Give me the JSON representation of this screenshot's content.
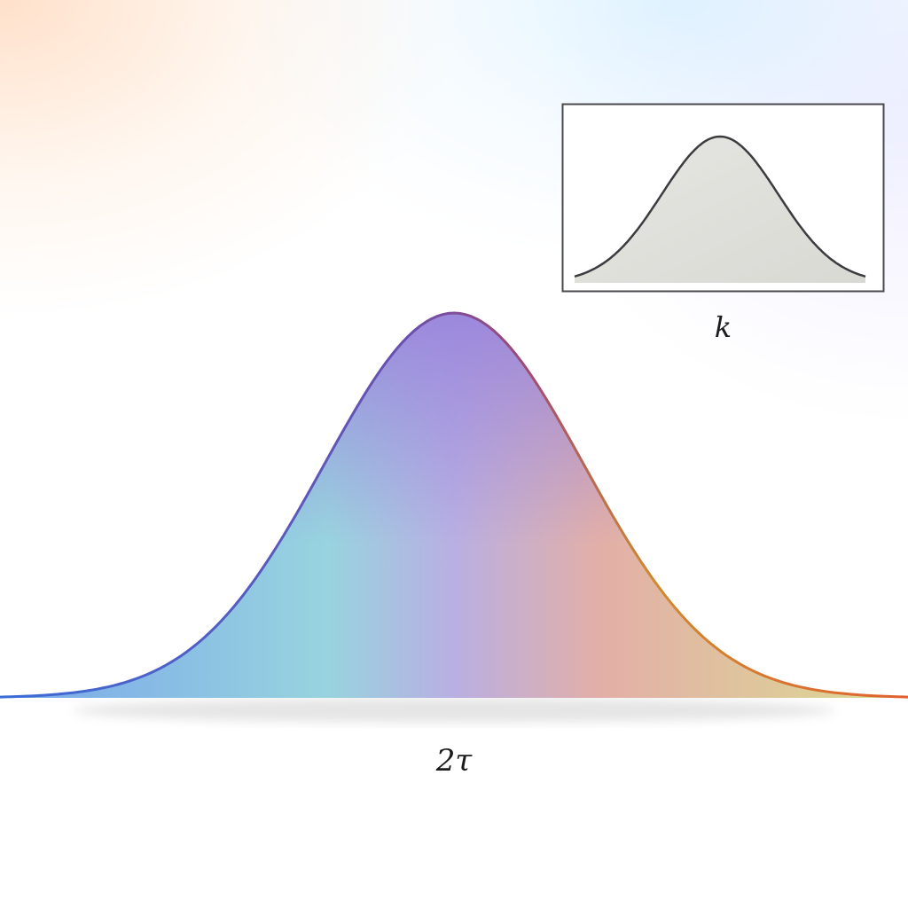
{
  "chart_data": [
    {
      "type": "area",
      "title": "",
      "xlabel": "2τ",
      "ylabel": "",
      "grid": false,
      "legend": "none",
      "curve": "gaussian",
      "x": [
        -3.5,
        -3.0,
        -2.5,
        -2.0,
        -1.5,
        -1.0,
        -0.5,
        0.0,
        0.5,
        1.0,
        1.5,
        2.0,
        2.5,
        3.0,
        3.5
      ],
      "y": [
        0.002,
        0.011,
        0.044,
        0.135,
        0.325,
        0.607,
        0.882,
        1.0,
        0.882,
        0.607,
        0.325,
        0.135,
        0.044,
        0.011,
        0.002
      ],
      "xlim": [
        -3.5,
        3.5
      ],
      "ylim": [
        0,
        1.0
      ],
      "fill_colors": [
        "#6d9ee8",
        "#8fd0dc",
        "#b3a8e0",
        "#9a86dc",
        "#e0a8a0",
        "#d8d888"
      ],
      "stroke_colors": [
        "#3a6cd8",
        "#6a4fb0",
        "#a04a70",
        "#d08a30",
        "#e06030"
      ]
    },
    {
      "type": "area",
      "title": "",
      "xlabel": "k",
      "ylabel": "",
      "grid": false,
      "legend": "none",
      "curve": "gaussian",
      "x": [
        -2.5,
        -2.0,
        -1.5,
        -1.0,
        -0.5,
        0.0,
        0.5,
        1.0,
        1.5,
        2.0,
        2.5
      ],
      "y": [
        0.01,
        0.06,
        0.22,
        0.52,
        0.86,
        1.0,
        0.86,
        0.52,
        0.22,
        0.06,
        0.01
      ],
      "xlim": [
        -2.5,
        2.5
      ],
      "ylim": [
        0,
        1.0
      ],
      "fill_colors": [
        "#e6e6e2",
        "#d9d9d4"
      ],
      "stroke_colors": [
        "#3c3c40"
      ]
    }
  ]
}
